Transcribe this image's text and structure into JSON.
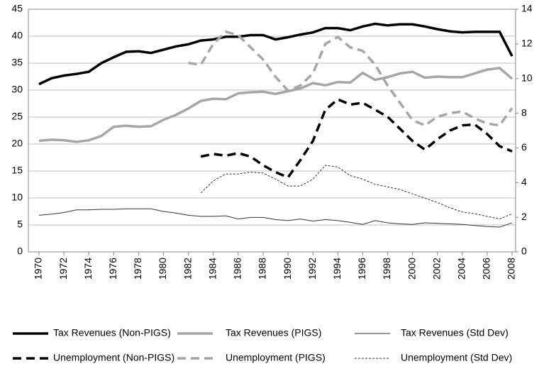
{
  "chart_data": {
    "type": "line",
    "x": [
      1970,
      1971,
      1972,
      1973,
      1974,
      1975,
      1976,
      1977,
      1978,
      1979,
      1980,
      1981,
      1982,
      1983,
      1984,
      1985,
      1986,
      1987,
      1988,
      1989,
      1990,
      1991,
      1992,
      1993,
      1994,
      1995,
      1996,
      1997,
      1998,
      1999,
      2000,
      2001,
      2002,
      2003,
      2004,
      2005,
      2006,
      2007,
      2008
    ],
    "xlim": [
      1970,
      2008
    ],
    "xticks": [
      1970,
      1972,
      1974,
      1976,
      1978,
      1980,
      1982,
      1984,
      1986,
      1988,
      1990,
      1992,
      1994,
      1996,
      1998,
      2000,
      2002,
      2004,
      2006,
      2008
    ],
    "ylim": [
      0,
      45
    ],
    "yticks": [
      0,
      5,
      10,
      15,
      20,
      25,
      30,
      35,
      40,
      45
    ],
    "y2lim": [
      0,
      14
    ],
    "y2ticks": [
      0,
      2,
      4,
      6,
      8,
      10,
      12,
      14
    ],
    "grid": true,
    "legend": "bottom",
    "series": [
      {
        "name": "Tax Revenues (Non-PIGS)",
        "color": "#000000",
        "line_width": 3.5,
        "line_style": "solid",
        "values": [
          31.1,
          32.2,
          32.7,
          33.0,
          33.4,
          35.0,
          36.1,
          37.1,
          37.2,
          36.9,
          37.5,
          38.1,
          38.5,
          39.2,
          39.4,
          39.9,
          39.9,
          40.2,
          40.2,
          39.4,
          39.8,
          40.3,
          40.7,
          41.5,
          41.5,
          41.1,
          41.8,
          42.3,
          42.0,
          42.2,
          42.2,
          41.8,
          41.3,
          40.9,
          40.7,
          40.8,
          40.8,
          40.8,
          36.3
        ]
      },
      {
        "name": "Tax Revenues (PIGS)",
        "color": "#a6a6a6",
        "line_width": 3.5,
        "line_style": "solid",
        "values": [
          20.6,
          20.8,
          20.7,
          20.4,
          20.7,
          21.5,
          23.2,
          23.4,
          23.2,
          23.3,
          24.5,
          25.4,
          26.6,
          28.0,
          28.4,
          28.3,
          29.4,
          29.6,
          29.7,
          29.3,
          29.8,
          30.3,
          31.3,
          30.9,
          31.5,
          31.4,
          33.2,
          31.9,
          32.4,
          33.1,
          33.4,
          32.3,
          32.5,
          32.4,
          32.4,
          33.1,
          33.8,
          34.1,
          32.1
        ]
      },
      {
        "name": "Tax Revenues (Std Dev)",
        "color": "#333333",
        "line_width": 1,
        "line_style": "solid",
        "values": [
          6.8,
          7.0,
          7.3,
          7.8,
          7.8,
          7.9,
          7.9,
          8.0,
          8.0,
          8.0,
          7.5,
          7.2,
          6.8,
          6.6,
          6.6,
          6.7,
          6.1,
          6.4,
          6.4,
          6.0,
          5.8,
          6.1,
          5.7,
          6.0,
          5.8,
          5.5,
          5.1,
          5.8,
          5.4,
          5.2,
          5.1,
          5.4,
          5.3,
          5.2,
          5.1,
          4.9,
          4.7,
          4.6,
          5.4
        ]
      },
      {
        "name": "Unemployment (Non-PIGS)",
        "color": "#000000",
        "line_width": 3.5,
        "line_style": "dashed",
        "axis": "y2",
        "values": [
          null,
          null,
          null,
          null,
          null,
          null,
          null,
          null,
          null,
          null,
          null,
          null,
          null,
          5.5,
          5.65,
          5.55,
          5.7,
          5.5,
          5.0,
          4.6,
          4.3,
          5.3,
          6.4,
          8.2,
          8.8,
          8.5,
          8.6,
          8.2,
          7.8,
          7.1,
          6.4,
          5.9,
          6.5,
          7.0,
          7.3,
          7.35,
          6.8,
          6.1,
          5.8
        ]
      },
      {
        "name": "Unemployment (PIGS)",
        "color": "#a6a6a6",
        "line_width": 3.5,
        "line_style": "dashed",
        "axis": "y2",
        "values": [
          null,
          null,
          null,
          null,
          null,
          null,
          null,
          null,
          null,
          null,
          null,
          null,
          10.9,
          10.8,
          12.0,
          12.7,
          12.5,
          11.8,
          11.1,
          10.1,
          9.3,
          9.6,
          10.3,
          12.0,
          12.4,
          11.8,
          11.6,
          10.8,
          9.6,
          8.6,
          7.6,
          7.3,
          7.8,
          8.0,
          8.1,
          7.7,
          7.4,
          7.3,
          8.3
        ]
      },
      {
        "name": "Unemployment (Std Dev)",
        "color": "#333333",
        "line_width": 1,
        "line_style": "dotted",
        "axis": "y2",
        "values": [
          null,
          null,
          null,
          null,
          null,
          null,
          null,
          null,
          null,
          null,
          null,
          null,
          null,
          3.4,
          4.1,
          4.5,
          4.5,
          4.6,
          4.55,
          4.2,
          3.8,
          3.8,
          4.2,
          5.0,
          4.9,
          4.4,
          4.2,
          3.9,
          3.75,
          3.6,
          3.35,
          3.1,
          2.85,
          2.55,
          2.3,
          2.2,
          2.05,
          1.9,
          2.2
        ]
      }
    ]
  }
}
